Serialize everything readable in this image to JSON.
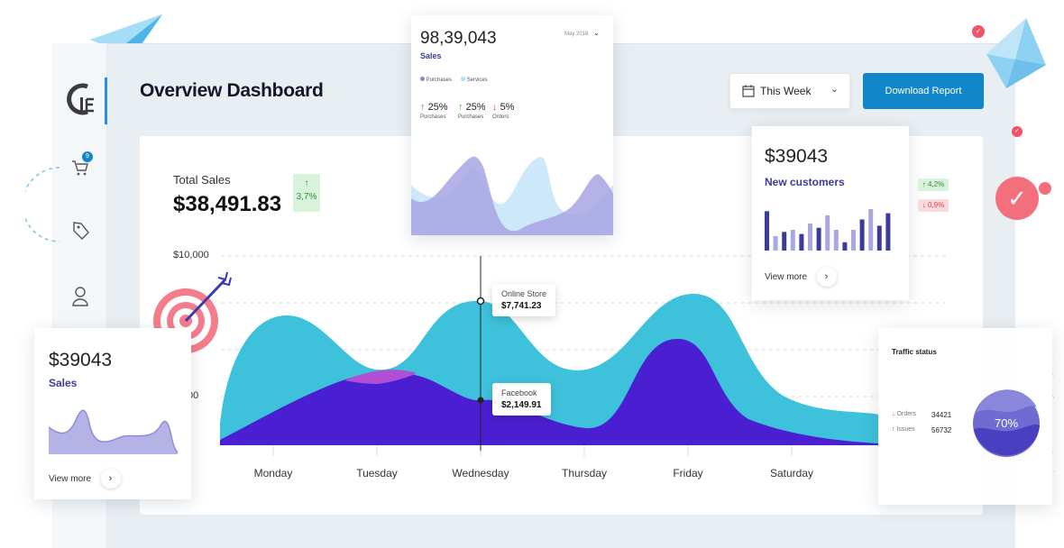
{
  "header": {
    "title": "Overview Dashboard"
  },
  "controls": {
    "period_label": "This Week",
    "download_label": "Download Report"
  },
  "sidebar": {
    "cart_badge": "9"
  },
  "main_chart": {
    "total_label": "Total Sales",
    "total_value": "$38,491.83",
    "change": "3,7%",
    "y_top_label": "$10,000",
    "y_mid_label": "00",
    "days": [
      "Monday",
      "Tuesday",
      "Wednesday",
      "Thursday",
      "Friday",
      "Saturday"
    ],
    "tooltip_top": {
      "label": "Online Store",
      "value": "$7,741.23"
    },
    "tooltip_bottom": {
      "label": "Facebook",
      "value": "$2,149.91"
    }
  },
  "sales_popup": {
    "value": "98,39,043",
    "label": "Sales",
    "date": "May 2018",
    "legend": [
      "Purchases",
      "Services"
    ],
    "stats": [
      {
        "value": "25%",
        "label": "Purchases",
        "dir": "up"
      },
      {
        "value": "25%",
        "label": "Purchases",
        "dir": "up"
      },
      {
        "value": "5%",
        "label": "Orders",
        "dir": "down"
      }
    ]
  },
  "customers_card": {
    "value": "$39043",
    "label": "New customers",
    "view_more": "View more",
    "change_up": "4,2%",
    "change_down": "0,9%",
    "bars": [
      38,
      14,
      18,
      20,
      16,
      26,
      22,
      34,
      20,
      8,
      20,
      30,
      40,
      24,
      36
    ],
    "bar_colors": [
      "dark",
      "light",
      "dark",
      "light",
      "dark",
      "light",
      "dark",
      "light",
      "light",
      "dark",
      "light",
      "dark",
      "light",
      "dark",
      "dark"
    ]
  },
  "sales_card": {
    "value": "$39043",
    "label": "Sales",
    "view_more": "View more"
  },
  "traffic_card": {
    "title": "Traffic status",
    "orders_label": "Orders",
    "orders_value": "34421",
    "issues_label": "Issues",
    "issues_value": "56732",
    "percent": "70%"
  },
  "colors": {
    "accent": "#1187c9",
    "purple": "#4a1fd1",
    "cyan": "#3ec1db",
    "lavender": "#b5b3e6"
  }
}
